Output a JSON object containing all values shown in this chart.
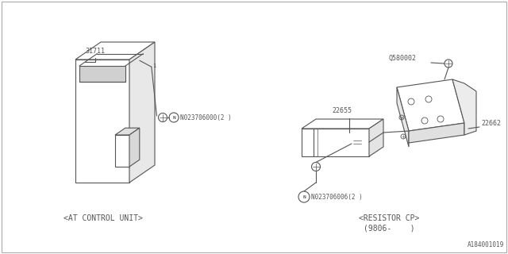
{
  "background_color": "#ffffff",
  "line_color": "#555555",
  "diagram_id": "A184001019",
  "left_label": "<AT CONTROL UNIT>",
  "right_label_line1": "<RESISTOR CP>",
  "right_label_line2": "(9806-    )",
  "N023706000_label": "N023706000(2 )",
  "N023706006_label": "N023706006(2 )"
}
